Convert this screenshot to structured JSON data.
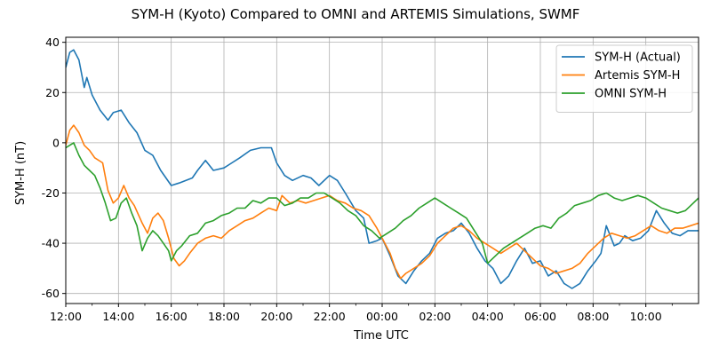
{
  "chart_data": {
    "type": "line",
    "title": "SYM-H (Kyoto) Compared to OMNI and ARTEMIS Simulations, SWMF",
    "xlabel": "Time UTC",
    "ylabel": "SYM-H (nT)",
    "xlim": [
      0,
      24
    ],
    "ylim": [
      -64,
      42
    ],
    "x_unit": "hours from 12:00 UTC",
    "x_ticks": [
      {
        "x": 0,
        "label": "12:00"
      },
      {
        "x": 2,
        "label": "14:00"
      },
      {
        "x": 4,
        "label": "16:00"
      },
      {
        "x": 6,
        "label": "18:00"
      },
      {
        "x": 8,
        "label": "20:00"
      },
      {
        "x": 10,
        "label": "22:00"
      },
      {
        "x": 12,
        "label": "00:00"
      },
      {
        "x": 14,
        "label": "02:00"
      },
      {
        "x": 16,
        "label": "04:00"
      },
      {
        "x": 18,
        "label": "06:00"
      },
      {
        "x": 20,
        "label": "08:00"
      },
      {
        "x": 22,
        "label": "10:00"
      }
    ],
    "y_ticks": [
      40,
      20,
      0,
      -20,
      -40,
      -60
    ],
    "grid": true,
    "legend_position": "top-right",
    "series": [
      {
        "name": "SYM-H (Actual)",
        "color": "#1f77b4",
        "points": [
          [
            0,
            30
          ],
          [
            0.15,
            36
          ],
          [
            0.3,
            37
          ],
          [
            0.5,
            33
          ],
          [
            0.7,
            22
          ],
          [
            0.8,
            26
          ],
          [
            1.0,
            19
          ],
          [
            1.3,
            13
          ],
          [
            1.6,
            9
          ],
          [
            1.8,
            12
          ],
          [
            2.1,
            13
          ],
          [
            2.4,
            8
          ],
          [
            2.7,
            4
          ],
          [
            3.0,
            -3
          ],
          [
            3.3,
            -5
          ],
          [
            3.6,
            -11
          ],
          [
            4.0,
            -17
          ],
          [
            4.3,
            -16
          ],
          [
            4.8,
            -14
          ],
          [
            5.0,
            -11
          ],
          [
            5.3,
            -7
          ],
          [
            5.6,
            -11
          ],
          [
            6.0,
            -10
          ],
          [
            6.3,
            -8
          ],
          [
            6.6,
            -6
          ],
          [
            7.0,
            -3
          ],
          [
            7.4,
            -2
          ],
          [
            7.8,
            -2
          ],
          [
            8.0,
            -8
          ],
          [
            8.3,
            -13
          ],
          [
            8.6,
            -15
          ],
          [
            9.0,
            -13
          ],
          [
            9.3,
            -14
          ],
          [
            9.6,
            -17
          ],
          [
            10.0,
            -13
          ],
          [
            10.3,
            -15
          ],
          [
            10.6,
            -20
          ],
          [
            11.0,
            -27
          ],
          [
            11.3,
            -30
          ],
          [
            11.5,
            -40
          ],
          [
            11.8,
            -39
          ],
          [
            12.0,
            -38
          ],
          [
            12.3,
            -45
          ],
          [
            12.6,
            -53
          ],
          [
            12.9,
            -56
          ],
          [
            13.2,
            -51
          ],
          [
            13.5,
            -47
          ],
          [
            13.8,
            -44
          ],
          [
            14.1,
            -38
          ],
          [
            14.4,
            -36
          ],
          [
            14.7,
            -35
          ],
          [
            15.0,
            -32
          ],
          [
            15.3,
            -36
          ],
          [
            15.6,
            -42
          ],
          [
            15.9,
            -47
          ],
          [
            16.2,
            -50
          ],
          [
            16.5,
            -56
          ],
          [
            16.8,
            -53
          ],
          [
            17.1,
            -47
          ],
          [
            17.4,
            -42
          ],
          [
            17.7,
            -48
          ],
          [
            18.0,
            -47
          ],
          [
            18.3,
            -53
          ],
          [
            18.6,
            -51
          ],
          [
            18.9,
            -56
          ],
          [
            19.2,
            -58
          ],
          [
            19.5,
            -56
          ],
          [
            19.8,
            -51
          ],
          [
            20.1,
            -47
          ],
          [
            20.3,
            -44
          ],
          [
            20.5,
            -33
          ],
          [
            20.8,
            -41
          ],
          [
            21.0,
            -40
          ],
          [
            21.2,
            -37
          ],
          [
            21.5,
            -39
          ],
          [
            21.8,
            -38
          ],
          [
            22.1,
            -35
          ],
          [
            22.4,
            -27
          ],
          [
            22.7,
            -32
          ],
          [
            23.0,
            -36
          ],
          [
            23.3,
            -37
          ],
          [
            23.6,
            -35
          ],
          [
            24.0,
            -35
          ]
        ]
      },
      {
        "name": "Artemis SYM-H",
        "color": "#ff7f0e",
        "points": [
          [
            0,
            -1
          ],
          [
            0.15,
            5
          ],
          [
            0.3,
            7
          ],
          [
            0.5,
            4
          ],
          [
            0.7,
            -1
          ],
          [
            0.9,
            -3
          ],
          [
            1.1,
            -6
          ],
          [
            1.4,
            -8
          ],
          [
            1.6,
            -19
          ],
          [
            1.8,
            -24
          ],
          [
            2.0,
            -22
          ],
          [
            2.2,
            -17
          ],
          [
            2.4,
            -22
          ],
          [
            2.6,
            -25
          ],
          [
            2.9,
            -32
          ],
          [
            3.1,
            -36
          ],
          [
            3.3,
            -30
          ],
          [
            3.5,
            -28
          ],
          [
            3.7,
            -31
          ],
          [
            3.9,
            -38
          ],
          [
            4.1,
            -46
          ],
          [
            4.3,
            -49
          ],
          [
            4.5,
            -47
          ],
          [
            4.7,
            -44
          ],
          [
            5.0,
            -40
          ],
          [
            5.3,
            -38
          ],
          [
            5.6,
            -37
          ],
          [
            5.9,
            -38
          ],
          [
            6.2,
            -35
          ],
          [
            6.5,
            -33
          ],
          [
            6.8,
            -31
          ],
          [
            7.1,
            -30
          ],
          [
            7.4,
            -28
          ],
          [
            7.7,
            -26
          ],
          [
            8.0,
            -27
          ],
          [
            8.2,
            -21
          ],
          [
            8.5,
            -24
          ],
          [
            8.8,
            -23
          ],
          [
            9.1,
            -24
          ],
          [
            9.4,
            -23
          ],
          [
            9.7,
            -22
          ],
          [
            10.0,
            -21
          ],
          [
            10.3,
            -23
          ],
          [
            10.6,
            -24
          ],
          [
            10.9,
            -26
          ],
          [
            11.2,
            -27
          ],
          [
            11.5,
            -29
          ],
          [
            11.8,
            -34
          ],
          [
            12.1,
            -40
          ],
          [
            12.3,
            -44
          ],
          [
            12.5,
            -50
          ],
          [
            12.7,
            -54
          ],
          [
            12.9,
            -52
          ],
          [
            13.2,
            -50
          ],
          [
            13.5,
            -48
          ],
          [
            13.8,
            -45
          ],
          [
            14.1,
            -40
          ],
          [
            14.4,
            -37
          ],
          [
            14.7,
            -34
          ],
          [
            15.0,
            -33
          ],
          [
            15.3,
            -35
          ],
          [
            15.6,
            -38
          ],
          [
            15.9,
            -40
          ],
          [
            16.2,
            -42
          ],
          [
            16.5,
            -44
          ],
          [
            16.8,
            -42
          ],
          [
            17.1,
            -40
          ],
          [
            17.4,
            -43
          ],
          [
            17.7,
            -46
          ],
          [
            18.0,
            -49
          ],
          [
            18.3,
            -50
          ],
          [
            18.6,
            -52
          ],
          [
            18.9,
            -51
          ],
          [
            19.2,
            -50
          ],
          [
            19.5,
            -48
          ],
          [
            19.8,
            -44
          ],
          [
            20.1,
            -41
          ],
          [
            20.4,
            -38
          ],
          [
            20.7,
            -36
          ],
          [
            21.0,
            -37
          ],
          [
            21.3,
            -38
          ],
          [
            21.6,
            -37
          ],
          [
            21.9,
            -35
          ],
          [
            22.2,
            -33
          ],
          [
            22.5,
            -35
          ],
          [
            22.8,
            -36
          ],
          [
            23.1,
            -34
          ],
          [
            23.4,
            -34
          ],
          [
            23.7,
            -33
          ],
          [
            24.0,
            -32
          ]
        ]
      },
      {
        "name": "OMNI SYM-H",
        "color": "#2ca02c",
        "points": [
          [
            0,
            -2
          ],
          [
            0.15,
            -1
          ],
          [
            0.3,
            0
          ],
          [
            0.5,
            -5
          ],
          [
            0.7,
            -9
          ],
          [
            0.9,
            -11
          ],
          [
            1.1,
            -13
          ],
          [
            1.3,
            -18
          ],
          [
            1.5,
            -24
          ],
          [
            1.7,
            -31
          ],
          [
            1.9,
            -30
          ],
          [
            2.1,
            -24
          ],
          [
            2.3,
            -22
          ],
          [
            2.5,
            -28
          ],
          [
            2.7,
            -33
          ],
          [
            2.9,
            -43
          ],
          [
            3.1,
            -38
          ],
          [
            3.3,
            -35
          ],
          [
            3.5,
            -37
          ],
          [
            3.7,
            -40
          ],
          [
            3.9,
            -43
          ],
          [
            4.0,
            -47
          ],
          [
            4.2,
            -43
          ],
          [
            4.4,
            -41
          ],
          [
            4.7,
            -37
          ],
          [
            5.0,
            -36
          ],
          [
            5.3,
            -32
          ],
          [
            5.6,
            -31
          ],
          [
            5.9,
            -29
          ],
          [
            6.2,
            -28
          ],
          [
            6.5,
            -26
          ],
          [
            6.8,
            -26
          ],
          [
            7.1,
            -23
          ],
          [
            7.4,
            -24
          ],
          [
            7.7,
            -22
          ],
          [
            8.0,
            -22
          ],
          [
            8.3,
            -25
          ],
          [
            8.6,
            -24
          ],
          [
            8.9,
            -22
          ],
          [
            9.2,
            -22
          ],
          [
            9.5,
            -20
          ],
          [
            9.8,
            -20
          ],
          [
            10.1,
            -22
          ],
          [
            10.4,
            -24
          ],
          [
            10.7,
            -27
          ],
          [
            11.0,
            -29
          ],
          [
            11.3,
            -33
          ],
          [
            11.6,
            -35
          ],
          [
            11.9,
            -38
          ],
          [
            12.2,
            -36
          ],
          [
            12.5,
            -34
          ],
          [
            12.8,
            -31
          ],
          [
            13.1,
            -29
          ],
          [
            13.4,
            -26
          ],
          [
            13.7,
            -24
          ],
          [
            14.0,
            -22
          ],
          [
            14.3,
            -24
          ],
          [
            14.6,
            -26
          ],
          [
            14.9,
            -28
          ],
          [
            15.2,
            -30
          ],
          [
            15.5,
            -35
          ],
          [
            15.8,
            -40
          ],
          [
            16.0,
            -48
          ],
          [
            16.3,
            -45
          ],
          [
            16.6,
            -42
          ],
          [
            16.9,
            -40
          ],
          [
            17.2,
            -38
          ],
          [
            17.5,
            -36
          ],
          [
            17.8,
            -34
          ],
          [
            18.1,
            -33
          ],
          [
            18.4,
            -34
          ],
          [
            18.7,
            -30
          ],
          [
            19.0,
            -28
          ],
          [
            19.3,
            -25
          ],
          [
            19.6,
            -24
          ],
          [
            19.9,
            -23
          ],
          [
            20.2,
            -21
          ],
          [
            20.5,
            -20
          ],
          [
            20.8,
            -22
          ],
          [
            21.1,
            -23
          ],
          [
            21.4,
            -22
          ],
          [
            21.7,
            -21
          ],
          [
            22.0,
            -22
          ],
          [
            22.3,
            -24
          ],
          [
            22.6,
            -26
          ],
          [
            22.9,
            -27
          ],
          [
            23.2,
            -28
          ],
          [
            23.5,
            -27
          ],
          [
            23.8,
            -24
          ],
          [
            24.0,
            -22
          ]
        ]
      }
    ]
  }
}
